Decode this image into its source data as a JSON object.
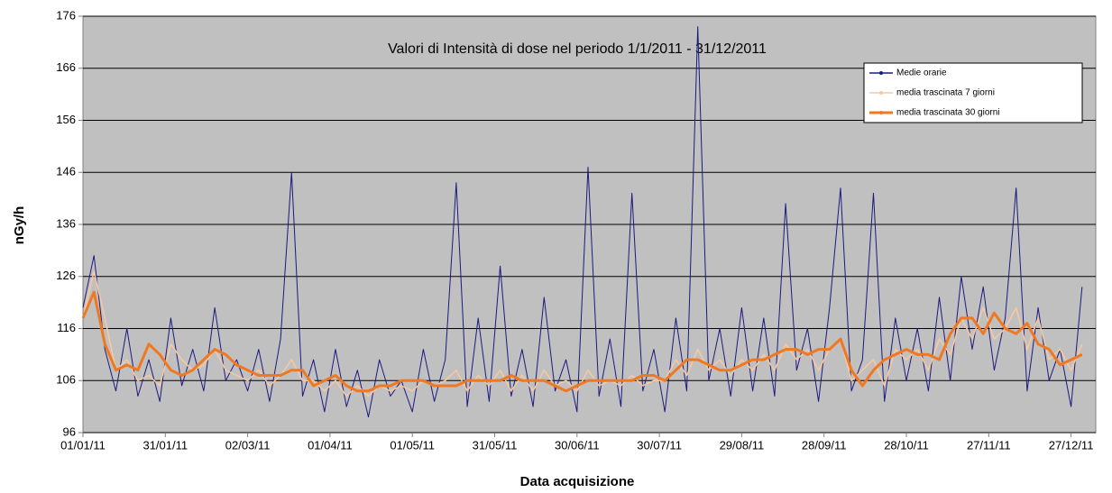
{
  "chart_data": {
    "type": "line",
    "title": "Valori di Intensità di dose nel periodo 1/1/2011 - 31/12/2011",
    "x_label": "Data acquisizione",
    "y_label": "nGy/h",
    "x": [
      "2011-01-01",
      "2011-01-05",
      "2011-01-09",
      "2011-01-13",
      "2011-01-17",
      "2011-01-21",
      "2011-01-25",
      "2011-01-29",
      "2011-02-02",
      "2011-02-06",
      "2011-02-10",
      "2011-02-14",
      "2011-02-18",
      "2011-02-22",
      "2011-02-26",
      "2011-03-02",
      "2011-03-06",
      "2011-03-10",
      "2011-03-14",
      "2011-03-18",
      "2011-03-22",
      "2011-03-26",
      "2011-03-30",
      "2011-04-03",
      "2011-04-07",
      "2011-04-11",
      "2011-04-15",
      "2011-04-19",
      "2011-04-23",
      "2011-04-27",
      "2011-05-01",
      "2011-05-05",
      "2011-05-09",
      "2011-05-13",
      "2011-05-17",
      "2011-05-21",
      "2011-05-25",
      "2011-05-29",
      "2011-06-02",
      "2011-06-06",
      "2011-06-10",
      "2011-06-14",
      "2011-06-18",
      "2011-06-22",
      "2011-06-26",
      "2011-06-30",
      "2011-07-04",
      "2011-07-08",
      "2011-07-12",
      "2011-07-16",
      "2011-07-20",
      "2011-07-24",
      "2011-07-28",
      "2011-08-01",
      "2011-08-05",
      "2011-08-09",
      "2011-08-13",
      "2011-08-17",
      "2011-08-21",
      "2011-08-25",
      "2011-08-29",
      "2011-09-02",
      "2011-09-06",
      "2011-09-10",
      "2011-09-14",
      "2011-09-18",
      "2011-09-22",
      "2011-09-26",
      "2011-09-30",
      "2011-10-04",
      "2011-10-08",
      "2011-10-12",
      "2011-10-16",
      "2011-10-20",
      "2011-10-24",
      "2011-10-28",
      "2011-11-01",
      "2011-11-05",
      "2011-11-09",
      "2011-11-13",
      "2011-11-17",
      "2011-11-21",
      "2011-11-25",
      "2011-11-29",
      "2011-12-03",
      "2011-12-07",
      "2011-12-11",
      "2011-12-15",
      "2011-12-19",
      "2011-12-23",
      "2011-12-27",
      "2011-12-31"
    ],
    "series": [
      {
        "name": "Medie orarie",
        "color": "#1a1a80",
        "values": [
          120,
          130,
          112,
          104,
          116,
          103,
          110,
          102,
          118,
          105,
          112,
          104,
          120,
          106,
          110,
          104,
          112,
          102,
          114,
          146,
          103,
          110,
          100,
          112,
          101,
          108,
          99,
          110,
          103,
          106,
          100,
          112,
          102,
          110,
          144,
          101,
          118,
          102,
          128,
          103,
          112,
          101,
          122,
          104,
          110,
          100,
          147,
          103,
          114,
          101,
          142,
          104,
          112,
          100,
          118,
          104,
          174,
          106,
          116,
          103,
          120,
          104,
          118,
          103,
          140,
          108,
          116,
          102,
          120,
          143,
          104,
          110,
          142,
          102,
          118,
          106,
          116,
          104,
          122,
          106,
          126,
          112,
          124,
          108,
          118,
          143,
          104,
          120,
          106,
          112,
          101,
          124
        ]
      },
      {
        "name": "media trascinata 7 giorni",
        "color": "#f8c9a0",
        "values": [
          118,
          127,
          118,
          108,
          110,
          106,
          107,
          105,
          113,
          110,
          108,
          109,
          112,
          108,
          107,
          106,
          108,
          105,
          107,
          110,
          106,
          106,
          104,
          106,
          103,
          105,
          103,
          105,
          104,
          105,
          104,
          106,
          105,
          106,
          108,
          104,
          107,
          105,
          108,
          104,
          107,
          104,
          108,
          105,
          106,
          104,
          108,
          105,
          106,
          105,
          107,
          105,
          106,
          106,
          110,
          107,
          112,
          108,
          110,
          107,
          110,
          108,
          111,
          108,
          113,
          110,
          112,
          108,
          112,
          114,
          106,
          108,
          110,
          105,
          112,
          110,
          112,
          108,
          114,
          111,
          118,
          114,
          120,
          114,
          116,
          120,
          112,
          118,
          110,
          112,
          108,
          113
        ]
      },
      {
        "name": "media trascinata 30 giorni",
        "color": "#f07820",
        "values": [
          118,
          123,
          113,
          108,
          109,
          108,
          113,
          111,
          108,
          107,
          108,
          110,
          112,
          111,
          109,
          108,
          107,
          107,
          107,
          108,
          108,
          105,
          106,
          107,
          105,
          104,
          104,
          105,
          105,
          106,
          106,
          106,
          105,
          105,
          105,
          106,
          106,
          106,
          106,
          107,
          106,
          106,
          106,
          105,
          104,
          105,
          106,
          106,
          106,
          106,
          106,
          107,
          107,
          106,
          108,
          110,
          110,
          109,
          108,
          108,
          109,
          110,
          110,
          111,
          112,
          112,
          111,
          112,
          112,
          114,
          108,
          105,
          108,
          110,
          111,
          112,
          111,
          111,
          110,
          115,
          118,
          118,
          115,
          119,
          116,
          115,
          117,
          113,
          112,
          109,
          110,
          111
        ]
      }
    ],
    "xlim": [
      "2011-01-01",
      "2012-01-05"
    ],
    "xticks": [
      {
        "value": "2011-01-01",
        "label": "01/01/11"
      },
      {
        "value": "2011-01-31",
        "label": "31/01/11"
      },
      {
        "value": "2011-03-02",
        "label": "02/03/11"
      },
      {
        "value": "2011-04-01",
        "label": "01/04/11"
      },
      {
        "value": "2011-05-01",
        "label": "01/05/11"
      },
      {
        "value": "2011-05-31",
        "label": "31/05/11"
      },
      {
        "value": "2011-06-30",
        "label": "30/06/11"
      },
      {
        "value": "2011-07-30",
        "label": "30/07/11"
      },
      {
        "value": "2011-08-29",
        "label": "29/08/11"
      },
      {
        "value": "2011-09-28",
        "label": "28/09/11"
      },
      {
        "value": "2011-10-28",
        "label": "28/10/11"
      },
      {
        "value": "2011-11-27",
        "label": "27/11/11"
      },
      {
        "value": "2011-12-27",
        "label": "27/12/11"
      }
    ],
    "ylim": [
      96,
      176
    ],
    "yticks": [
      96,
      106,
      116,
      126,
      136,
      146,
      156,
      166,
      176
    ],
    "grid": true,
    "legend": "top-right"
  }
}
